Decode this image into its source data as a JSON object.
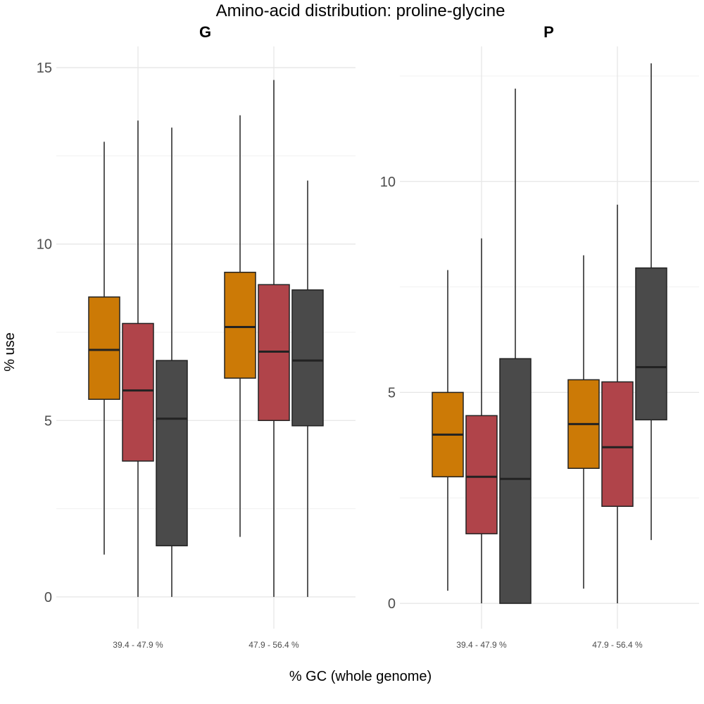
{
  "chart_data": {
    "type": "box",
    "title": "Amino-acid distribution: proline-glycine",
    "xlabel": "% GC (whole genome)",
    "ylabel": "% use",
    "categories": [
      "39.4 - 47.9 %",
      "47.9 - 56.4 %"
    ],
    "series_colors": [
      "#cc7a06",
      "#b0444a",
      "#4a4a4a"
    ],
    "grid": true,
    "legend": "none",
    "facets": [
      {
        "label": "G",
        "ylim": [
          -0.9,
          15.6
        ],
        "yticks": [
          0,
          5,
          10,
          15
        ],
        "groups": [
          {
            "category": "39.4 - 47.9 %",
            "boxes": [
              {
                "min": 1.2,
                "q1": 5.6,
                "median": 7.0,
                "q3": 8.5,
                "max": 12.9
              },
              {
                "min": 0.0,
                "q1": 3.85,
                "median": 5.85,
                "q3": 7.75,
                "max": 13.5
              },
              {
                "min": 0.0,
                "q1": 1.45,
                "median": 5.05,
                "q3": 6.7,
                "max": 13.3
              }
            ]
          },
          {
            "category": "47.9 - 56.4 %",
            "boxes": [
              {
                "min": 1.7,
                "q1": 6.2,
                "median": 7.65,
                "q3": 9.2,
                "max": 13.65
              },
              {
                "min": 0.0,
                "q1": 5.0,
                "median": 6.95,
                "q3": 8.85,
                "max": 14.65
              },
              {
                "min": 0.0,
                "q1": 4.85,
                "median": 6.7,
                "q3": 8.7,
                "max": 11.8
              }
            ]
          }
        ]
      },
      {
        "label": "P",
        "ylim": [
          -0.6,
          13.2
        ],
        "yticks": [
          0,
          5,
          10
        ],
        "groups": [
          {
            "category": "39.4 - 47.9 %",
            "boxes": [
              {
                "min": 0.3,
                "q1": 3.0,
                "median": 4.0,
                "q3": 5.0,
                "max": 7.9
              },
              {
                "min": 0.0,
                "q1": 1.65,
                "median": 3.0,
                "q3": 4.45,
                "max": 8.65
              },
              {
                "min": 0.0,
                "q1": 0.0,
                "median": 2.95,
                "q3": 5.8,
                "max": 12.2
              }
            ]
          },
          {
            "category": "47.9 - 56.4 %",
            "boxes": [
              {
                "min": 0.35,
                "q1": 3.2,
                "median": 4.25,
                "q3": 5.3,
                "max": 8.25
              },
              {
                "min": 0.0,
                "q1": 2.3,
                "median": 3.7,
                "q3": 5.25,
                "max": 9.45
              },
              {
                "min": 1.5,
                "q1": 4.35,
                "median": 5.6,
                "q3": 7.95,
                "max": 12.8
              }
            ]
          }
        ]
      }
    ]
  }
}
